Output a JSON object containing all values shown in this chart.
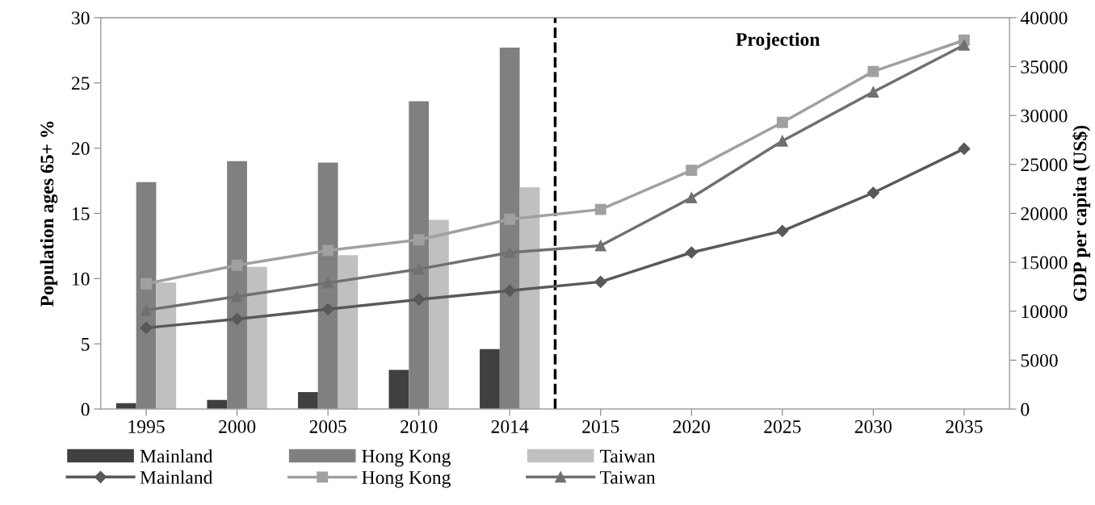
{
  "chart_data": {
    "type": "bar",
    "ylabel": "Population ages 65+ %",
    "y2label": "GDP per capita (US$)",
    "categories": [
      "1995",
      "2000",
      "2005",
      "2010",
      "2014",
      "2015",
      "2020",
      "2025",
      "2030",
      "2035"
    ],
    "ylim": [
      0,
      30
    ],
    "yticks": [
      0,
      5,
      10,
      15,
      20,
      25,
      30
    ],
    "y2lim": [
      0,
      40000
    ],
    "y2ticks": [
      0,
      5000,
      10000,
      15000,
      20000,
      25000,
      30000,
      35000,
      40000
    ],
    "grid": false,
    "legend": "bottom",
    "series": [
      {
        "name": "Mainland",
        "color": "#404040",
        "values": [
          0.45,
          0.7,
          1.3,
          3.0,
          4.6,
          null,
          null,
          null,
          null,
          null
        ]
      },
      {
        "name": "Mainland",
        "type": "line",
        "axis": "y2",
        "marker": "diamond",
        "color": "#595959",
        "values": [
          8300,
          9200,
          10200,
          11200,
          12100,
          13000,
          16000,
          18200,
          22100,
          26600
        ]
      },
      {
        "name": "Hong Kong",
        "color": "#808080",
        "values": [
          17.4,
          19.0,
          18.9,
          23.6,
          27.7,
          null,
          null,
          null,
          null,
          null
        ]
      },
      {
        "name": "Hong Kong",
        "type": "line",
        "axis": "y2",
        "marker": "square",
        "color": "#a0a0a0",
        "values": [
          12800,
          14700,
          16200,
          17300,
          19400,
          20400,
          24400,
          29300,
          34500,
          37700
        ]
      },
      {
        "name": "Taiwan",
        "color": "#c0c0c0",
        "values": [
          9.7,
          10.9,
          11.8,
          14.5,
          17.0,
          null,
          null,
          null,
          null,
          null
        ]
      },
      {
        "name": "Taiwan",
        "type": "line",
        "axis": "y2",
        "marker": "triangle",
        "color": "#707070",
        "values": [
          10100,
          11500,
          12900,
          14300,
          16000,
          16700,
          21600,
          27400,
          32400,
          37200
        ]
      }
    ],
    "annotations": [
      "Projection"
    ]
  }
}
